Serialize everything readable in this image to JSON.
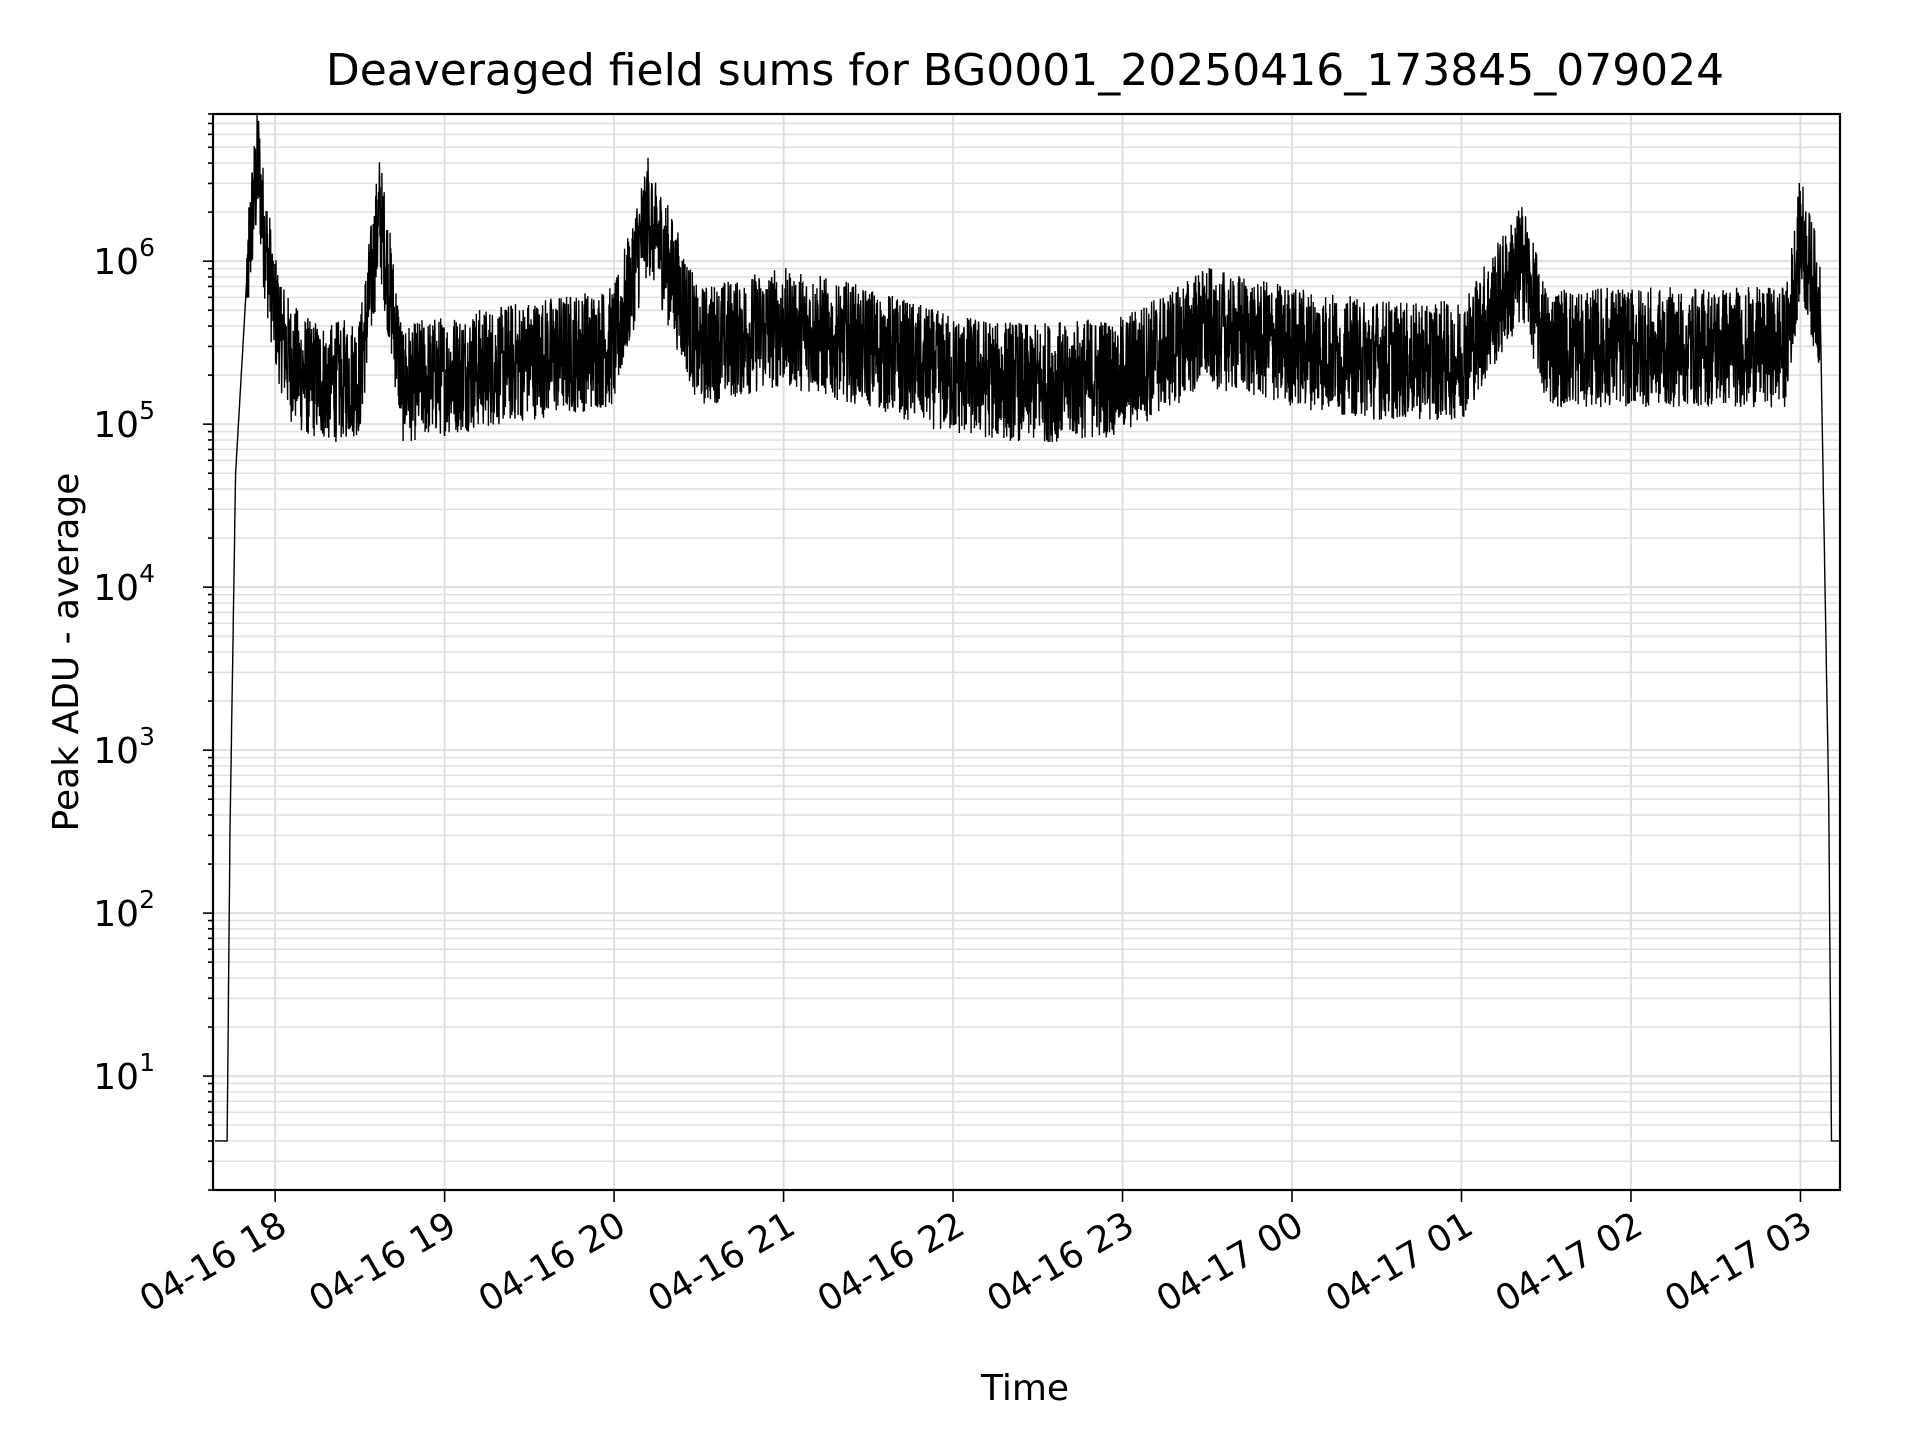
{
  "chart_data": {
    "type": "line",
    "title": "Deaveraged field sums for BG0001_20250416_173845_079024",
    "xlabel": "Time",
    "ylabel": "Peak ADU - average",
    "yscale": "log",
    "ylim": [
      2,
      8000000
    ],
    "xlim": [
      "2025-04-16 17:38",
      "2025-04-17 03:14"
    ],
    "grid": true,
    "x_tick_labels": [
      "04-16 18",
      "04-16 19",
      "04-16 20",
      "04-16 21",
      "04-16 22",
      "04-16 23",
      "04-17 00",
      "04-17 01",
      "04-17 02",
      "04-17 03"
    ],
    "y_tick_labels": [
      {
        "base": "10",
        "exp": "1"
      },
      {
        "base": "10",
        "exp": "2"
      },
      {
        "base": "10",
        "exp": "3"
      },
      {
        "base": "10",
        "exp": "4"
      },
      {
        "base": "10",
        "exp": "5"
      },
      {
        "base": "10",
        "exp": "6"
      }
    ],
    "line_color": "#000000",
    "series": [
      {
        "x": [
          "2025-04-16 17:38:45",
          "2025-04-16 17:43",
          "2025-04-16 17:44",
          "2025-04-16 17:46",
          "2025-04-16 17:50",
          "2025-04-16 17:52",
          "2025-04-16 17:54",
          "2025-04-16 17:56",
          "2025-04-16 18:00",
          "2025-04-16 18:05",
          "2025-04-16 18:10",
          "2025-04-16 18:20",
          "2025-04-16 18:30",
          "2025-04-16 18:37",
          "2025-04-16 18:45",
          "2025-04-16 19:00",
          "2025-04-16 19:30",
          "2025-04-16 20:00",
          "2025-04-16 20:12",
          "2025-04-16 20:30",
          "2025-04-16 21:00",
          "2025-04-16 21:30",
          "2025-04-16 22:00",
          "2025-04-16 22:30",
          "2025-04-16 23:00",
          "2025-04-16 23:30",
          "2025-04-17 00:00",
          "2025-04-17 00:30",
          "2025-04-17 01:00",
          "2025-04-17 01:22",
          "2025-04-17 01:30",
          "2025-04-17 02:00",
          "2025-04-17 02:30",
          "2025-04-17 02:55",
          "2025-04-17 03:00",
          "2025-04-17 03:03",
          "2025-04-17 03:07",
          "2025-04-17 03:10",
          "2025-04-17 03:11",
          "2025-04-17 03:14"
        ],
        "y": [
          4,
          4,
          300,
          50000,
          800000,
          2000000,
          4000000,
          1500000,
          500000,
          250000,
          200000,
          180000,
          200000,
          2000000,
          180000,
          200000,
          250000,
          300000,
          2000000,
          300000,
          400000,
          300000,
          200000,
          180000,
          200000,
          400000,
          300000,
          250000,
          250000,
          1000000,
          300000,
          300000,
          300000,
          300000,
          1500000,
          900000,
          500000,
          500,
          4,
          4
        ]
      }
    ]
  }
}
